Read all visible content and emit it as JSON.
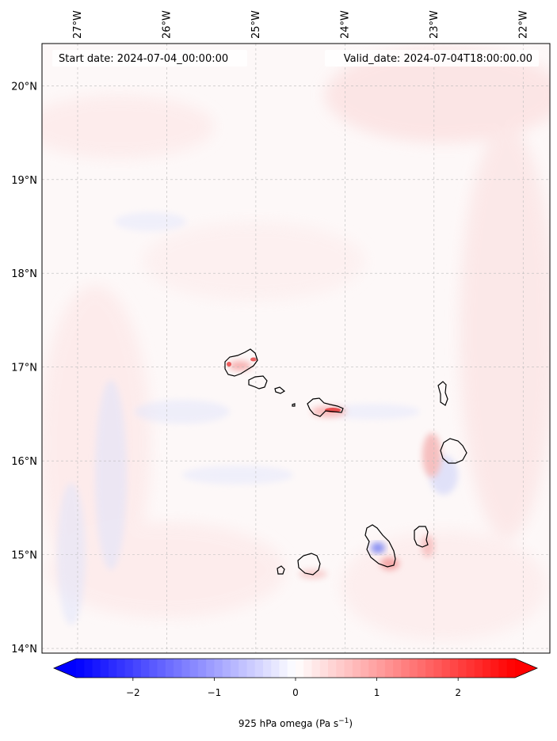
{
  "map": {
    "start_date_label": "Start date: 2024-07-04_00:00:00",
    "valid_date_label": "Valid_date: 2024-07-04T18:00:00.00",
    "lon_ticks": [
      {
        "lon": -27,
        "label": "27°W"
      },
      {
        "lon": -26,
        "label": "26°W"
      },
      {
        "lon": -25,
        "label": "25°W"
      },
      {
        "lon": -24,
        "label": "24°W"
      },
      {
        "lon": -23,
        "label": "23°W"
      },
      {
        "lon": -22,
        "label": "22°W"
      }
    ],
    "lat_ticks": [
      {
        "lat": 20,
        "label": "20°N"
      },
      {
        "lat": 19,
        "label": "19°N"
      },
      {
        "lat": 18,
        "label": "18°N"
      },
      {
        "lat": 17,
        "label": "17°N"
      },
      {
        "lat": 16,
        "label": "16°N"
      },
      {
        "lat": 15,
        "label": "15°N"
      },
      {
        "lat": 14,
        "label": "14°N"
      }
    ],
    "extent": {
      "lon_min": -27.4,
      "lon_max": -21.7,
      "lat_min": 13.95,
      "lat_max": 20.45
    },
    "field_colormap": "bwr",
    "gridlines": true
  },
  "colorbar": {
    "min": -2.7,
    "max": 2.7,
    "extend": "both",
    "ticks": [
      {
        "value": -2,
        "label": "−2"
      },
      {
        "value": -1,
        "label": "−1"
      },
      {
        "value": 0,
        "label": "0"
      },
      {
        "value": 1,
        "label": "1"
      },
      {
        "value": 2,
        "label": "2"
      }
    ],
    "label_main": "925 hPa omega (Pa s",
    "label_exp": "−1",
    "label_close": ")",
    "colors": {
      "negative": "#0000ff",
      "zero": "#ffffff",
      "positive": "#ff0000"
    }
  }
}
